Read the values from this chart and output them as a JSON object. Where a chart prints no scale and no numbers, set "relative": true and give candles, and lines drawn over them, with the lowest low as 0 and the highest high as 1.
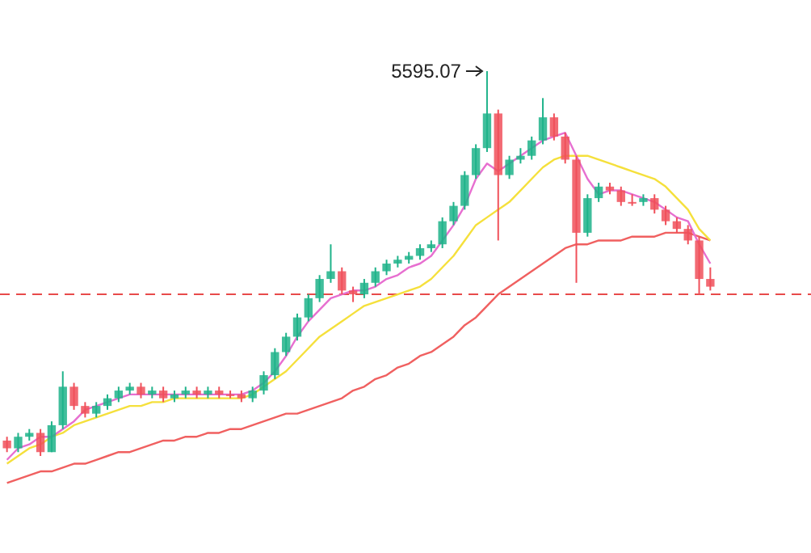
{
  "chart_data": {
    "type": "candlestick",
    "relative": true,
    "categories": [
      null,
      null,
      null,
      null,
      null,
      null,
      null,
      null,
      null,
      null,
      null,
      null,
      null,
      null,
      null,
      null,
      null,
      null,
      null,
      null,
      null,
      null,
      null,
      null,
      null,
      null,
      null,
      null,
      null,
      null,
      null,
      null,
      null,
      null,
      null,
      null,
      null,
      null,
      null,
      null,
      null,
      null,
      null,
      null,
      null,
      null,
      null,
      null,
      null,
      null,
      null,
      null,
      null,
      null,
      null,
      null,
      null,
      null,
      null,
      null,
      null,
      null,
      null,
      null
    ],
    "ohlc": [
      [
        0.04,
        0.05,
        0.01,
        0.02
      ],
      [
        0.02,
        0.06,
        0.01,
        0.05
      ],
      [
        0.05,
        0.07,
        0.04,
        0.06
      ],
      [
        0.06,
        0.07,
        0,
        0.01
      ],
      [
        0.01,
        0.09,
        0.01,
        0.08
      ],
      [
        0.08,
        0.22,
        0.07,
        0.18
      ],
      [
        0.18,
        0.19,
        0.12,
        0.13
      ],
      [
        0.13,
        0.14,
        0.1,
        0.11
      ],
      [
        0.11,
        0.14,
        0.1,
        0.13
      ],
      [
        0.13,
        0.16,
        0.12,
        0.15
      ],
      [
        0.15,
        0.18,
        0.14,
        0.17
      ],
      [
        0.17,
        0.19,
        0.16,
        0.18
      ],
      [
        0.18,
        0.19,
        0.15,
        0.16
      ],
      [
        0.16,
        0.18,
        0.15,
        0.17
      ],
      [
        0.17,
        0.18,
        0.14,
        0.15
      ],
      [
        0.15,
        0.17,
        0.14,
        0.16
      ],
      [
        0.16,
        0.18,
        0.15,
        0.17
      ],
      [
        0.17,
        0.18,
        0.15,
        0.16
      ],
      [
        0.16,
        0.18,
        0.15,
        0.17
      ],
      [
        0.17,
        0.18,
        0.15,
        0.16
      ],
      [
        0.16,
        0.17,
        0.15,
        0.16
      ],
      [
        0.16,
        0.17,
        0.14,
        0.15
      ],
      [
        0.15,
        0.18,
        0.14,
        0.17
      ],
      [
        0.17,
        0.22,
        0.16,
        0.21
      ],
      [
        0.21,
        0.28,
        0.2,
        0.27
      ],
      [
        0.27,
        0.32,
        0.26,
        0.31
      ],
      [
        0.31,
        0.37,
        0.3,
        0.36
      ],
      [
        0.36,
        0.42,
        0.35,
        0.41
      ],
      [
        0.41,
        0.47,
        0.4,
        0.46
      ],
      [
        0.46,
        0.55,
        0.45,
        0.48
      ],
      [
        0.48,
        0.49,
        0.42,
        0.43
      ],
      [
        0.43,
        0.44,
        0.4,
        0.42
      ],
      [
        0.42,
        0.46,
        0.41,
        0.45
      ],
      [
        0.45,
        0.49,
        0.44,
        0.48
      ],
      [
        0.48,
        0.51,
        0.47,
        0.5
      ],
      [
        0.5,
        0.52,
        0.49,
        0.51
      ],
      [
        0.51,
        0.53,
        0.5,
        0.52
      ],
      [
        0.52,
        0.55,
        0.51,
        0.54
      ],
      [
        0.54,
        0.56,
        0.53,
        0.55
      ],
      [
        0.55,
        0.62,
        0.54,
        0.61
      ],
      [
        0.61,
        0.66,
        0.6,
        0.65
      ],
      [
        0.65,
        0.74,
        0.64,
        0.73
      ],
      [
        0.73,
        0.81,
        0.72,
        0.8
      ],
      [
        0.8,
        1,
        0.79,
        0.89
      ],
      [
        0.89,
        0.9,
        0.56,
        0.73
      ],
      [
        0.73,
        0.78,
        0.72,
        0.77
      ],
      [
        0.77,
        0.8,
        0.76,
        0.78
      ],
      [
        0.78,
        0.83,
        0.77,
        0.82
      ],
      [
        0.82,
        0.93,
        0.81,
        0.88
      ],
      [
        0.88,
        0.89,
        0.82,
        0.83
      ],
      [
        0.83,
        0.84,
        0.76,
        0.77
      ],
      [
        0.77,
        0.78,
        0.45,
        0.58
      ],
      [
        0.58,
        0.68,
        0.57,
        0.67
      ],
      [
        0.67,
        0.71,
        0.66,
        0.7
      ],
      [
        0.7,
        0.71,
        0.68,
        0.69
      ],
      [
        0.69,
        0.7,
        0.65,
        0.66
      ],
      [
        0.66,
        0.68,
        0.65,
        0.66
      ],
      [
        0.66,
        0.68,
        0.65,
        0.67
      ],
      [
        0.67,
        0.68,
        0.63,
        0.64
      ],
      [
        0.64,
        0.65,
        0.6,
        0.61
      ],
      [
        0.61,
        0.62,
        0.58,
        0.59
      ],
      [
        0.59,
        0.6,
        0.55,
        0.56
      ],
      [
        0.56,
        0.57,
        0.42,
        0.46
      ],
      [
        0.46,
        0.49,
        0.43,
        0.44
      ]
    ],
    "series": [
      {
        "type": "line",
        "color": "#f06060",
        "values": [
          -0.07,
          -0.06,
          -0.05,
          -0.04,
          -0.04,
          -0.03,
          -0.02,
          -0.02,
          -0.01,
          0.0,
          0.01,
          0.01,
          0.02,
          0.03,
          0.04,
          0.04,
          0.05,
          0.05,
          0.06,
          0.06,
          0.07,
          0.07,
          0.08,
          0.09,
          0.1,
          0.11,
          0.11,
          0.12,
          0.13,
          0.14,
          0.15,
          0.17,
          0.18,
          0.2,
          0.21,
          0.23,
          0.24,
          0.26,
          0.27,
          0.29,
          0.31,
          0.34,
          0.36,
          0.39,
          0.42,
          0.44,
          0.46,
          0.48,
          0.5,
          0.52,
          0.54,
          0.55,
          0.55,
          0.56,
          0.56,
          0.56,
          0.57,
          0.57,
          0.57,
          0.58,
          0.58,
          0.58,
          0.57,
          0.56
        ]
      },
      {
        "type": "line",
        "color": "#f5e03c",
        "values": [
          -0.02,
          0.0,
          0.02,
          0.03,
          0.05,
          0.06,
          0.08,
          0.09,
          0.1,
          0.11,
          0.12,
          0.13,
          0.13,
          0.14,
          0.14,
          0.15,
          0.15,
          0.15,
          0.15,
          0.15,
          0.15,
          0.15,
          0.16,
          0.18,
          0.2,
          0.22,
          0.25,
          0.28,
          0.31,
          0.33,
          0.35,
          0.37,
          0.39,
          0.4,
          0.41,
          0.42,
          0.43,
          0.44,
          0.46,
          0.49,
          0.52,
          0.56,
          0.6,
          0.62,
          0.64,
          0.66,
          0.69,
          0.72,
          0.75,
          0.77,
          0.78,
          0.78,
          0.78,
          0.77,
          0.76,
          0.75,
          0.74,
          0.73,
          0.72,
          0.7,
          0.67,
          0.64,
          0.59,
          0.56
        ]
      },
      {
        "type": "line",
        "color": "#e76fd0",
        "values": [
          -0.01,
          0.02,
          0.03,
          0.05,
          0.05,
          0.07,
          0.09,
          0.12,
          0.13,
          0.14,
          0.15,
          0.16,
          0.16,
          0.16,
          0.16,
          0.16,
          0.16,
          0.16,
          0.16,
          0.16,
          0.16,
          0.16,
          0.17,
          0.19,
          0.22,
          0.26,
          0.31,
          0.35,
          0.38,
          0.41,
          0.42,
          0.43,
          0.43,
          0.44,
          0.46,
          0.47,
          0.49,
          0.5,
          0.52,
          0.56,
          0.6,
          0.65,
          0.72,
          0.76,
          0.74,
          0.76,
          0.78,
          0.8,
          0.82,
          0.83,
          0.84,
          0.78,
          0.72,
          0.68,
          0.69,
          0.69,
          0.68,
          0.67,
          0.66,
          0.64,
          0.62,
          0.61,
          0.55,
          0.5
        ]
      }
    ],
    "colors": [
      "#f0505a",
      "#1fb38a",
      "#1fb38a",
      "#f0505a",
      "#1fb38a",
      "#1fb38a",
      "#f0505a",
      "#f0505a",
      "#1fb38a",
      "#1fb38a",
      "#1fb38a",
      "#1fb38a",
      "#f0505a",
      "#1fb38a",
      "#f0505a",
      "#1fb38a",
      "#1fb38a",
      "#f0505a",
      "#1fb38a",
      "#f0505a",
      "#f0505a",
      "#f0505a",
      "#1fb38a",
      "#1fb38a",
      "#1fb38a",
      "#1fb38a",
      "#1fb38a",
      "#1fb38a",
      "#1fb38a",
      "#1fb38a",
      "#f0505a",
      "#f0505a",
      "#1fb38a",
      "#1fb38a",
      "#1fb38a",
      "#1fb38a",
      "#1fb38a",
      "#1fb38a",
      "#1fb38a",
      "#1fb38a",
      "#1fb38a",
      "#1fb38a",
      "#1fb38a",
      "#1fb38a",
      "#f0505a",
      "#1fb38a",
      "#1fb38a",
      "#1fb38a",
      "#1fb38a",
      "#f0505a",
      "#f0505a",
      "#f0505a",
      "#1fb38a",
      "#1fb38a",
      "#f0505a",
      "#f0505a",
      "#f0505a",
      "#1fb38a",
      "#f0505a",
      "#f0505a",
      "#f0505a",
      "#f0505a",
      "#f0505a",
      "#f0505a"
    ],
    "ref_lines": [
      {
        "axis": "y",
        "value": 0.42,
        "color": "#e84a4a",
        "line_style": "dashed"
      }
    ],
    "annotations": [
      "5595.07"
    ]
  }
}
